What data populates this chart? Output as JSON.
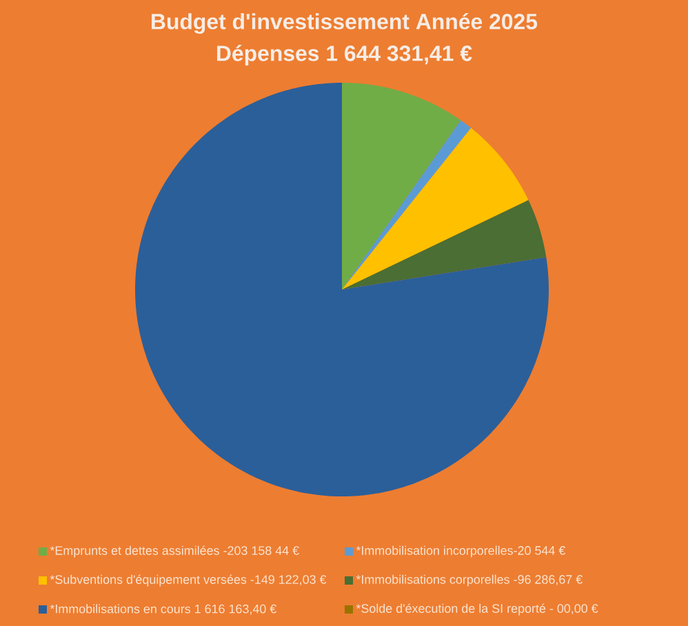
{
  "chart_data": {
    "type": "pie",
    "title": "Budget d'investissement Année 2025",
    "subtitle": "Dépenses 1 644 331,41 €",
    "categories": [
      "*Emprunts et dettes assimilées -203 158 44 €",
      "*Immobilisation incorporelles-20 544 €",
      "*Subventions d'équipement versées -149 122,03 €",
      "*Immobilisations corporelles -96 286,67 €",
      "*Immobilisations en cours 1 616 163,40 €",
      "*Solde d'éxecution de la SI reporté - 00,00 €"
    ],
    "values": [
      203158.44,
      20544,
      149122.03,
      96286.67,
      1616163.4,
      0
    ],
    "colors": [
      "#70ad47",
      "#5b9bd5",
      "#ffc000",
      "#4a6e33",
      "#2b5f99",
      "#997300"
    ],
    "legend": "bottom"
  }
}
